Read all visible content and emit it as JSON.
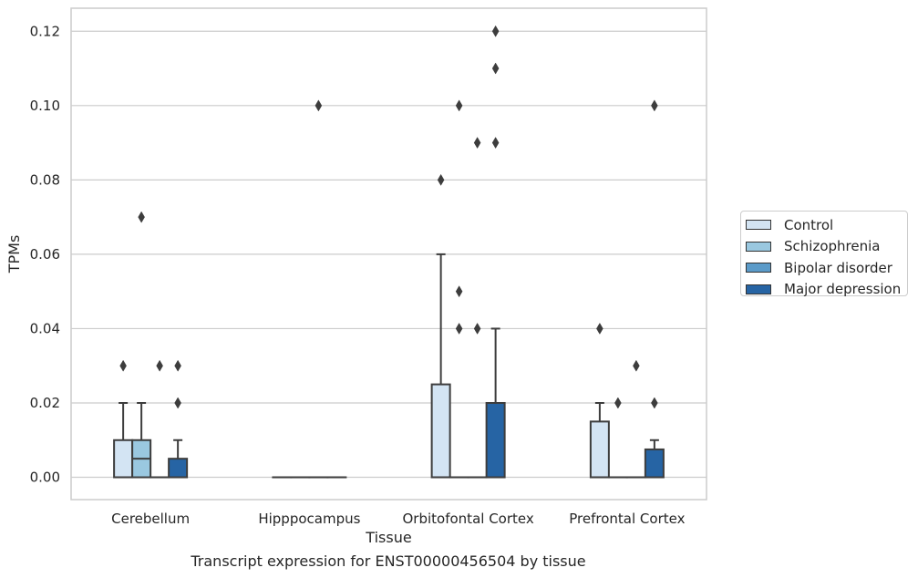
{
  "caption": "Transcript expression for ENST00000456504 by tissue",
  "chart_data": {
    "type": "box",
    "xlabel": "Tissue",
    "ylabel": "TPMs",
    "ylim": [
      -0.006,
      0.1262
    ],
    "yticks": [
      "0.00",
      "0.02",
      "0.04",
      "0.06",
      "0.08",
      "0.10",
      "0.12"
    ],
    "grid": "horizontal",
    "legend_position": "right",
    "categories": [
      "Cerebellum",
      "Hipppocampus",
      "Orbitofontal Cortex",
      "Prefrontal Cortex"
    ],
    "series": [
      {
        "name": "Control",
        "color": "#d3e4f3",
        "boxes": [
          {
            "q1": 0.0,
            "median": 0.0,
            "q3": 0.01,
            "whislo": 0.0,
            "whishi": 0.02,
            "fliers": [
              0.03
            ]
          },
          {
            "q1": 0.0,
            "median": 0.0,
            "q3": 0.0,
            "whislo": 0.0,
            "whishi": 0.0,
            "fliers": []
          },
          {
            "q1": 0.0,
            "median": 0.0,
            "q3": 0.025,
            "whislo": 0.0,
            "whishi": 0.06,
            "fliers": [
              0.08
            ]
          },
          {
            "q1": 0.0,
            "median": 0.0,
            "q3": 0.015,
            "whislo": 0.0,
            "whishi": 0.02,
            "fliers": [
              0.04
            ]
          }
        ]
      },
      {
        "name": "Schizophrenia",
        "color": "#9ac8e0",
        "boxes": [
          {
            "q1": 0.0,
            "median": 0.005,
            "q3": 0.01,
            "whislo": 0.0,
            "whishi": 0.02,
            "fliers": [
              0.07
            ]
          },
          {
            "q1": 0.0,
            "median": 0.0,
            "q3": 0.0,
            "whislo": 0.0,
            "whishi": 0.0,
            "fliers": []
          },
          {
            "q1": 0.0,
            "median": 0.0,
            "q3": 0.0,
            "whislo": 0.0,
            "whishi": 0.0,
            "fliers": [
              0.04,
              0.05,
              0.1
            ]
          },
          {
            "q1": 0.0,
            "median": 0.0,
            "q3": 0.0,
            "whislo": 0.0,
            "whishi": 0.0,
            "fliers": [
              0.02
            ]
          }
        ]
      },
      {
        "name": "Bipolar disorder",
        "color": "#5b9bc9",
        "boxes": [
          {
            "q1": 0.0,
            "median": 0.0,
            "q3": 0.0,
            "whislo": 0.0,
            "whishi": 0.0,
            "fliers": [
              0.03
            ]
          },
          {
            "q1": 0.0,
            "median": 0.0,
            "q3": 0.0,
            "whislo": 0.0,
            "whishi": 0.0,
            "fliers": [
              0.1
            ]
          },
          {
            "q1": 0.0,
            "median": 0.0,
            "q3": 0.0,
            "whislo": 0.0,
            "whishi": 0.0,
            "fliers": [
              0.04,
              0.09
            ]
          },
          {
            "q1": 0.0,
            "median": 0.0,
            "q3": 0.0,
            "whislo": 0.0,
            "whishi": 0.0,
            "fliers": [
              0.03
            ]
          }
        ]
      },
      {
        "name": "Major depression",
        "color": "#2664a4",
        "boxes": [
          {
            "q1": 0.0,
            "median": 0.0,
            "q3": 0.005,
            "whislo": 0.0,
            "whishi": 0.01,
            "fliers": [
              0.02,
              0.03
            ]
          },
          {
            "q1": 0.0,
            "median": 0.0,
            "q3": 0.0,
            "whislo": 0.0,
            "whishi": 0.0,
            "fliers": []
          },
          {
            "q1": 0.0,
            "median": 0.0,
            "q3": 0.02,
            "whislo": 0.0,
            "whishi": 0.04,
            "fliers": [
              0.09,
              0.11,
              0.12
            ]
          },
          {
            "q1": 0.0,
            "median": 0.0,
            "q3": 0.0075,
            "whislo": 0.0,
            "whishi": 0.01,
            "fliers": [
              0.02,
              0.1
            ]
          }
        ]
      }
    ]
  }
}
